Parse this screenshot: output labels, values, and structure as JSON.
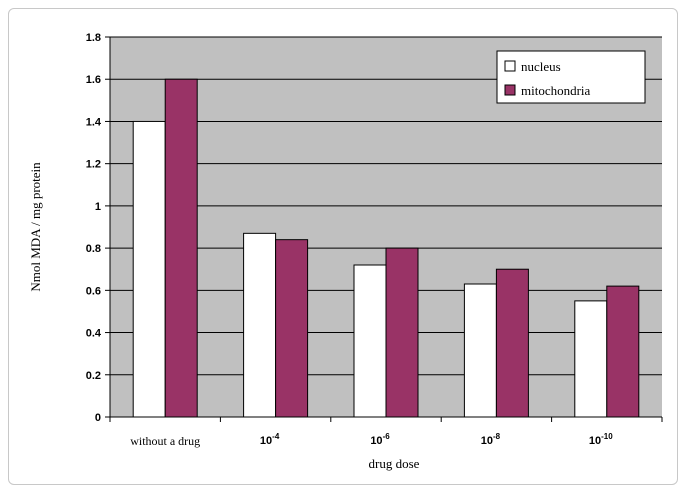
{
  "chart_data": {
    "type": "bar",
    "title": "",
    "xlabel": "drug dose",
    "ylabel": "Nmol MDA / mg protein",
    "ylim": [
      0,
      1.8
    ],
    "yticks": [
      "0",
      "0.2",
      "0.4",
      "0.6",
      "0.8",
      "1",
      "1.2",
      "1.4",
      "1.6",
      "1.8"
    ],
    "categories": [
      {
        "label": "without a drug",
        "base": "",
        "exp": ""
      },
      {
        "label": "",
        "base": "10",
        "exp": "-4"
      },
      {
        "label": "",
        "base": "10",
        "exp": "-6"
      },
      {
        "label": "",
        "base": "10",
        "exp": "-8"
      },
      {
        "label": "",
        "base": "10",
        "exp": "-10"
      }
    ],
    "series": [
      {
        "name": "nucleus",
        "color": "#ffffff",
        "values": [
          1.4,
          0.87,
          0.72,
          0.63,
          0.55
        ]
      },
      {
        "name": "mitochondria",
        "color": "#993366",
        "values": [
          1.6,
          0.84,
          0.8,
          0.7,
          0.62
        ]
      }
    ],
    "plot_background": "#c0c0c0",
    "grid": true,
    "legend_position": "top-right"
  }
}
